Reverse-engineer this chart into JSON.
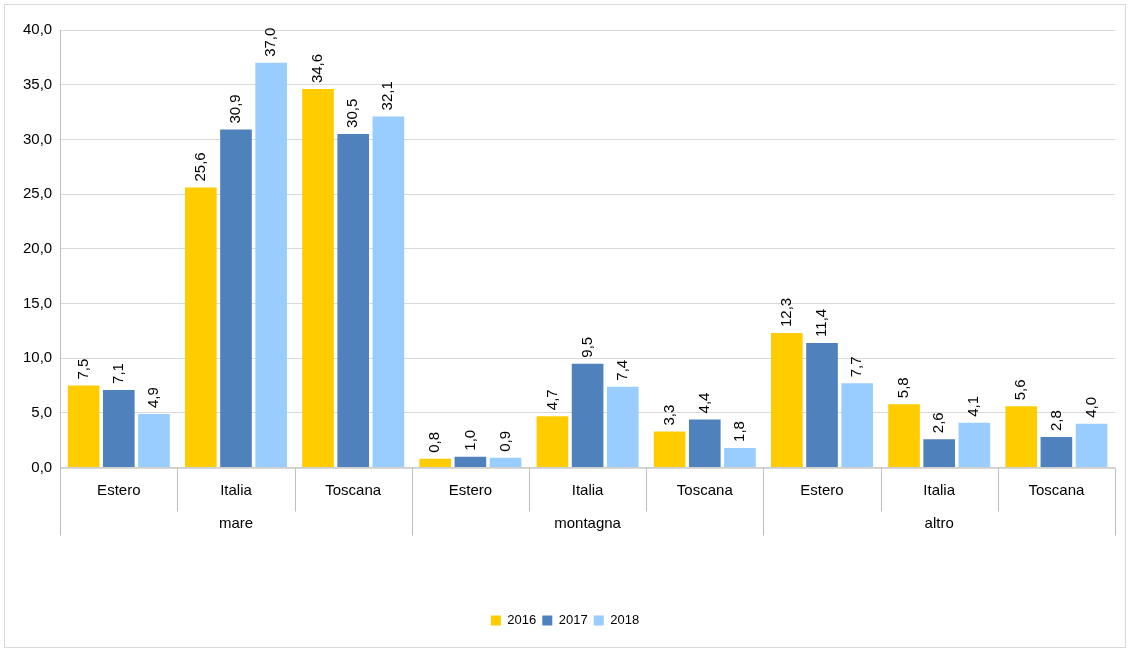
{
  "chart_data": {
    "type": "bar",
    "categories": [
      "Estero",
      "Italia",
      "Toscana",
      "Estero",
      "Italia",
      "Toscana",
      "Estero",
      "Italia",
      "Toscana"
    ],
    "annotations": [
      "mare",
      "montagna",
      "altro"
    ],
    "series": [
      {
        "name": "2016",
        "color": "#ffcc00",
        "values": [
          7.5,
          25.6,
          34.6,
          0.8,
          4.7,
          3.3,
          12.3,
          5.8,
          5.6
        ],
        "value_labels": [
          "7,5",
          "25,6",
          "34,6",
          "0,8",
          "4,7",
          "3,3",
          "12,3",
          "5,8",
          "5,6"
        ]
      },
      {
        "name": "2017",
        "color": "#4f81bd",
        "values": [
          7.1,
          30.9,
          30.5,
          1.0,
          9.5,
          4.4,
          11.4,
          2.6,
          2.8
        ],
        "value_labels": [
          "7,1",
          "30,9",
          "30,5",
          "1,0",
          "9,5",
          "4,4",
          "11,4",
          "2,6",
          "2,8"
        ]
      },
      {
        "name": "2018",
        "color": "#99ccff",
        "values": [
          4.9,
          37.0,
          32.1,
          0.9,
          7.4,
          1.8,
          7.7,
          4.1,
          4.0
        ],
        "value_labels": [
          "4,9",
          "37,0",
          "32,1",
          "0,9",
          "7,4",
          "1,8",
          "7,7",
          "4,1",
          "4,0"
        ]
      }
    ],
    "ylim": [
      0,
      40
    ],
    "yticks": [
      {
        "value": 0,
        "label": "0,0"
      },
      {
        "value": 5,
        "label": "5,0"
      },
      {
        "value": 10,
        "label": "10,0"
      },
      {
        "value": 15,
        "label": "15,0"
      },
      {
        "value": 20,
        "label": "20,0"
      },
      {
        "value": 25,
        "label": "25,0"
      },
      {
        "value": 30,
        "label": "30,0"
      },
      {
        "value": 35,
        "label": "35,0"
      },
      {
        "value": 40,
        "label": "40,0"
      }
    ],
    "grid": "y",
    "legend": "bottom"
  }
}
